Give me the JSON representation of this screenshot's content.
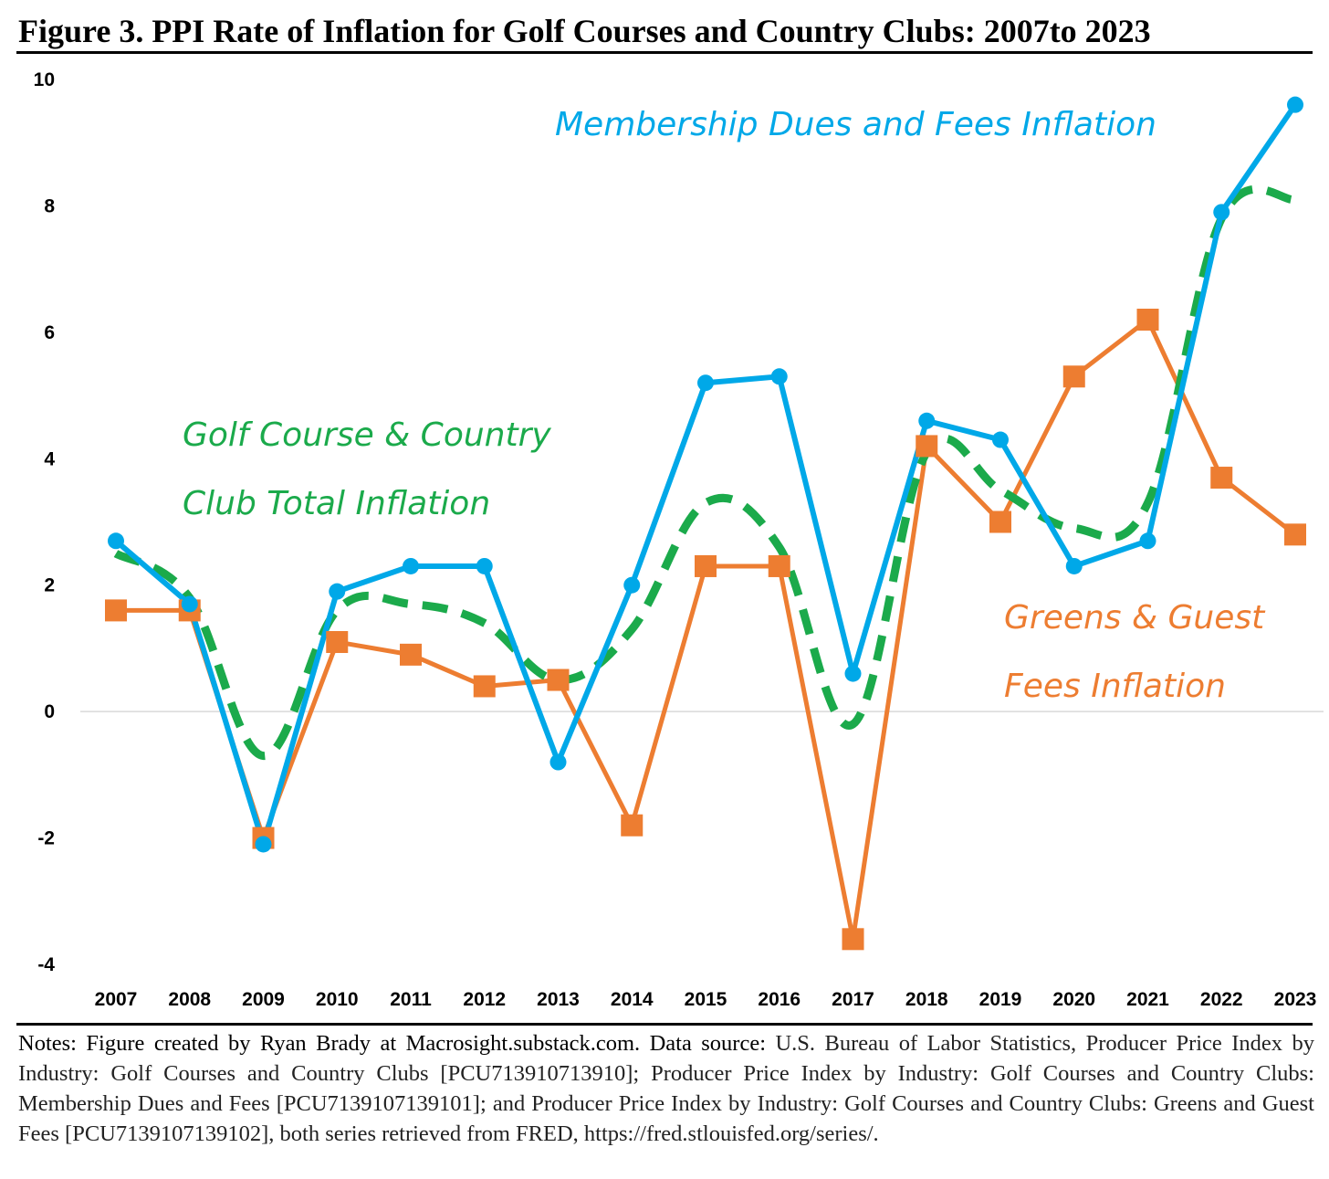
{
  "title": "Figure 3. PPI Rate of Inflation for Golf Courses and Country Clubs: 2007to 2023",
  "notes": {
    "lead": "Notes: Figure created by Ryan Brady at Macrosight.substack.com. Data source:",
    "body": " U.S. Bureau of Labor Statistics, Producer Price Index by Industry: Golf Courses and Country Clubs [PCU713910713910]; Producer Price Index by Industry: Golf Courses and Country Clubs: Membership Dues and Fees [PCU7139107139101]; and Producer Price Index by Industry: Golf Courses and Country Clubs: Greens and Guest Fees [PCU7139107139102], both series retrieved from FRED, https://fred.stlouisfed.org/series/."
  },
  "annotations": {
    "membership": "Membership Dues and Fees Inflation",
    "total_line1": "Golf Course & Country",
    "total_line2": "Club Total Inflation",
    "greens_line1": "Greens & Guest",
    "greens_line2": "Fees Inflation"
  },
  "chart_data": {
    "type": "line",
    "x": [
      "2007",
      "2008",
      "2009",
      "2010",
      "2011",
      "2012",
      "2013",
      "2014",
      "2015",
      "2016",
      "2017",
      "2018",
      "2019",
      "2020",
      "2021",
      "2022",
      "2023"
    ],
    "yticks": [
      -4,
      -2,
      0,
      2,
      4,
      6,
      8,
      10
    ],
    "ylim": [
      -4,
      10
    ],
    "grid": false,
    "legend": "none (inline annotations)",
    "series": [
      {
        "name": "Golf Course & Country Club Total Inflation",
        "style": "dashed",
        "color": "#1BAA4B",
        "values": [
          2.5,
          1.8,
          -0.7,
          1.6,
          1.7,
          1.4,
          0.5,
          1.3,
          3.3,
          2.6,
          -0.2,
          4.1,
          3.5,
          2.9,
          3.3,
          7.8,
          8.1
        ]
      },
      {
        "name": "Membership Dues and Fees Inflation",
        "style": "solid-circle",
        "color": "#00A8E8",
        "values": [
          2.7,
          1.7,
          -2.1,
          1.9,
          2.3,
          2.3,
          -0.8,
          2.0,
          5.2,
          5.3,
          0.6,
          4.6,
          4.3,
          2.3,
          2.7,
          7.9,
          9.6
        ]
      },
      {
        "name": "Greens & Guest Fees Inflation",
        "style": "solid-square",
        "color": "#ED7D31",
        "values": [
          1.6,
          1.6,
          -2.0,
          1.1,
          0.9,
          0.4,
          0.5,
          -1.8,
          2.3,
          2.3,
          -3.6,
          4.2,
          3.0,
          5.3,
          6.2,
          3.7,
          2.8
        ]
      }
    ]
  }
}
